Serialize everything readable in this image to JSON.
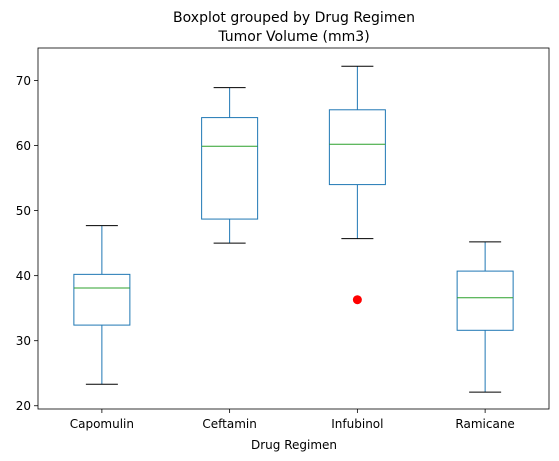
{
  "chart_data": {
    "type": "boxplot",
    "title": "Boxplot grouped by Drug Regimen",
    "subtitle": "Tumor Volume (mm3)",
    "xlabel": "Drug Regimen",
    "ylabel": "",
    "ylim": [
      19.5,
      75
    ],
    "yticks": [
      20,
      30,
      40,
      50,
      60,
      70
    ],
    "grid": false,
    "categories": [
      "Capomulin",
      "Ceftamin",
      "Infubinol",
      "Ramicane"
    ],
    "boxes": [
      {
        "name": "Capomulin",
        "whislo": 23.3,
        "q1": 32.4,
        "med": 38.1,
        "q3": 40.2,
        "whishi": 47.7,
        "fliers": []
      },
      {
        "name": "Ceftamin",
        "whislo": 45.0,
        "q1": 48.7,
        "med": 59.9,
        "q3": 64.3,
        "whishi": 68.9,
        "fliers": []
      },
      {
        "name": "Infubinol",
        "whislo": 45.7,
        "q1": 54.0,
        "med": 60.2,
        "q3": 65.5,
        "whishi": 72.2,
        "fliers": [
          36.3
        ]
      },
      {
        "name": "Ramicane",
        "whislo": 22.1,
        "q1": 31.6,
        "med": 36.6,
        "q3": 40.7,
        "whishi": 45.2,
        "fliers": []
      }
    ],
    "colors": {
      "box": "#1f77b4",
      "median": "#2ca02c",
      "whisker_cap": "#000000",
      "flier": "#ff0000",
      "axes": "#000000"
    }
  }
}
